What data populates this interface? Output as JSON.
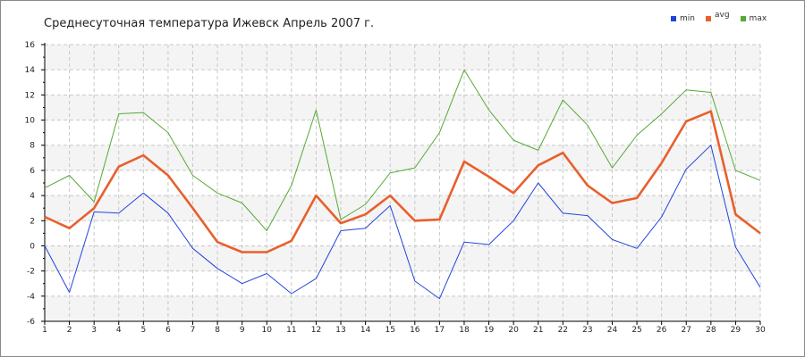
{
  "chart_data": {
    "type": "line",
    "title": "Среднесуточная температура Ижевск  Апрель 2007 г.",
    "xlabel": "",
    "ylabel": "",
    "x": [
      1,
      2,
      3,
      4,
      5,
      6,
      7,
      8,
      9,
      10,
      11,
      12,
      13,
      14,
      15,
      16,
      17,
      18,
      19,
      20,
      21,
      22,
      23,
      24,
      25,
      26,
      27,
      28,
      29,
      30
    ],
    "ylim": [
      -6,
      16
    ],
    "yticks": [
      -6,
      -4,
      -2,
      0,
      2,
      4,
      6,
      8,
      10,
      12,
      14,
      16
    ],
    "grid": true,
    "legend_position": "top-right",
    "series": [
      {
        "name": "min",
        "color": "#2244dd",
        "values": [
          0,
          -3.7,
          2.7,
          2.6,
          4.2,
          2.6,
          -0.2,
          -1.8,
          -3,
          -2.2,
          -3.8,
          -2.6,
          1.2,
          1.4,
          3.2,
          -2.8,
          -4.2,
          0.3,
          0.1,
          2,
          5,
          2.6,
          2.4,
          0.5,
          -0.2,
          2.3,
          6.1,
          8,
          -0.1,
          -3.3
        ]
      },
      {
        "name": "avg",
        "color": "#e8602c",
        "values": [
          2.3,
          1.4,
          3,
          6.3,
          7.2,
          5.6,
          3,
          0.3,
          -0.5,
          -0.5,
          0.4,
          4,
          1.8,
          2.5,
          4,
          2,
          2.1,
          6.7,
          5.5,
          4.2,
          6.4,
          7.4,
          4.8,
          3.4,
          3.8,
          6.6,
          9.9,
          10.7,
          2.5,
          1
        ]
      },
      {
        "name": "max",
        "color": "#55aa33",
        "values": [
          4.6,
          5.6,
          3.5,
          10.5,
          10.6,
          9,
          5.6,
          4.2,
          3.4,
          1.2,
          4.8,
          10.8,
          2.1,
          3.3,
          5.8,
          6.2,
          9,
          14,
          10.8,
          8.4,
          7.6,
          11.6,
          9.6,
          6.2,
          8.8,
          10.5,
          12.4,
          12.2,
          6,
          5.2
        ]
      }
    ]
  }
}
